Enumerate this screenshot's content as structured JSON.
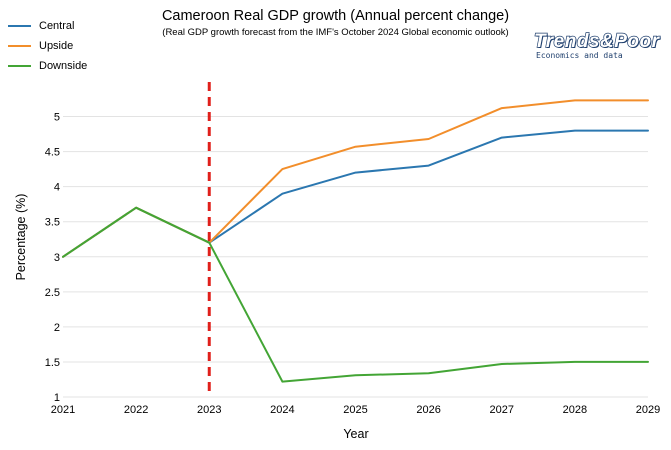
{
  "chart_data": {
    "type": "line",
    "title": "Cameroon Real GDP growth (Annual percent change)",
    "subtitle": "(Real GDP growth forecast from the IMF's October 2024 Global economic outlook)",
    "xlabel": "Year",
    "ylabel": "Percentage (%)",
    "x": [
      2021,
      2022,
      2023,
      2024,
      2025,
      2026,
      2027,
      2028,
      2029
    ],
    "x_tick_labels": [
      "2021",
      "2022",
      "2023",
      "2024",
      "2025",
      "2026",
      "2027",
      "2028",
      "2029"
    ],
    "y_tick_labels": [
      "1",
      "1.5",
      "2",
      "2.5",
      "3",
      "3.5",
      "4",
      "4.5",
      "5"
    ],
    "ylim": [
      1,
      5.35
    ],
    "grid": true,
    "legend_position": "top-left",
    "forecast_marker_x": 2023,
    "series": [
      {
        "name": "Central",
        "color": "#2b77b0",
        "values": [
          3.0,
          3.7,
          3.2,
          3.9,
          4.2,
          4.3,
          4.7,
          4.8,
          4.8
        ]
      },
      {
        "name": "Upside",
        "color": "#f28e2b",
        "values": [
          3.0,
          3.7,
          3.2,
          4.25,
          4.57,
          4.68,
          5.12,
          5.23,
          5.23
        ]
      },
      {
        "name": "Downside",
        "color": "#43a535",
        "values": [
          3.0,
          3.7,
          3.2,
          1.22,
          1.31,
          1.34,
          1.47,
          1.5,
          1.5
        ]
      }
    ],
    "marker_color": "#e0201b"
  },
  "logo": {
    "name": "Trends&Poor",
    "tagline": "Economics and data"
  }
}
